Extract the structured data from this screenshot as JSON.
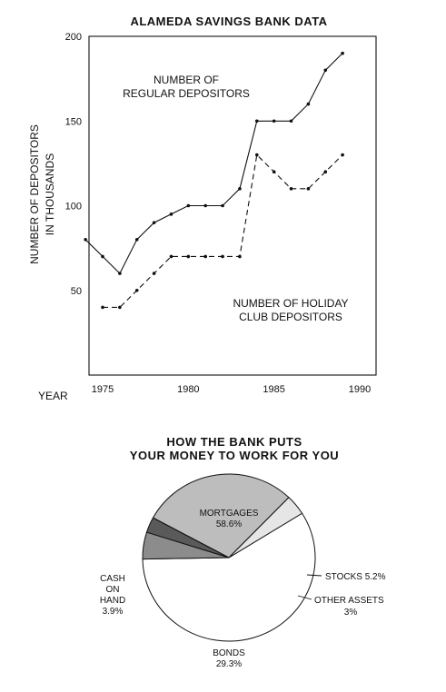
{
  "chart_data": [
    {
      "type": "line",
      "title": "ALAMEDA SAVINGS BANK DATA",
      "xlabel": "YEAR",
      "ylabel": [
        "NUMBER OF DEPOSITORS",
        "IN THOUSANDS"
      ],
      "xlim": [
        1974,
        1991
      ],
      "ylim": [
        0,
        200
      ],
      "x_ticks": [
        1975,
        1980,
        1985,
        1990
      ],
      "y_ticks": [
        50,
        100,
        150,
        200
      ],
      "grid": false,
      "series": [
        {
          "name": "NUMBER OF REGULAR DEPOSITORS",
          "style": "solid",
          "x": [
            1974,
            1975,
            1976,
            1977,
            1978,
            1979,
            1980,
            1981,
            1982,
            1983,
            1984,
            1985,
            1986,
            1987,
            1988,
            1989
          ],
          "y": [
            80,
            70,
            60,
            80,
            90,
            95,
            100,
            100,
            100,
            110,
            150,
            150,
            150,
            160,
            180,
            190
          ]
        },
        {
          "name": "NUMBER OF HOLIDAY CLUB DEPOSITORS",
          "style": "dashed",
          "x": [
            1975,
            1976,
            1977,
            1978,
            1979,
            1980,
            1981,
            1982,
            1983,
            1984,
            1985,
            1986,
            1987,
            1988,
            1989
          ],
          "y": [
            40,
            40,
            50,
            60,
            70,
            70,
            70,
            70,
            70,
            130,
            120,
            110,
            110,
            120,
            130
          ]
        }
      ],
      "annotations": {
        "regular": [
          "NUMBER OF",
          "REGULAR DEPOSITORS"
        ],
        "holiday": [
          "NUMBER OF HOLIDAY",
          "CLUB DEPOSITORS"
        ]
      }
    },
    {
      "type": "pie",
      "title": [
        "HOW THE BANK PUTS",
        "YOUR MONEY TO WORK FOR YOU"
      ],
      "slices": [
        {
          "label": [
            "MORTGAGES"
          ],
          "value": 58.6,
          "display": "58.6%",
          "color": "#ffffff"
        },
        {
          "label": [
            "STOCKS"
          ],
          "value": 5.2,
          "display": "5.2%",
          "color": "#8c8c8c"
        },
        {
          "label": [
            "OTHER ASSETS"
          ],
          "value": 3,
          "display": "3%",
          "color": "#5a5a5a"
        },
        {
          "label": [
            "BONDS"
          ],
          "value": 29.3,
          "display": "29.3%",
          "color": "#bdbdbd"
        },
        {
          "label": [
            "CASH",
            "ON",
            "HAND"
          ],
          "value": 3.9,
          "display": "3.9%",
          "color": "#e6e6e6"
        }
      ]
    }
  ]
}
